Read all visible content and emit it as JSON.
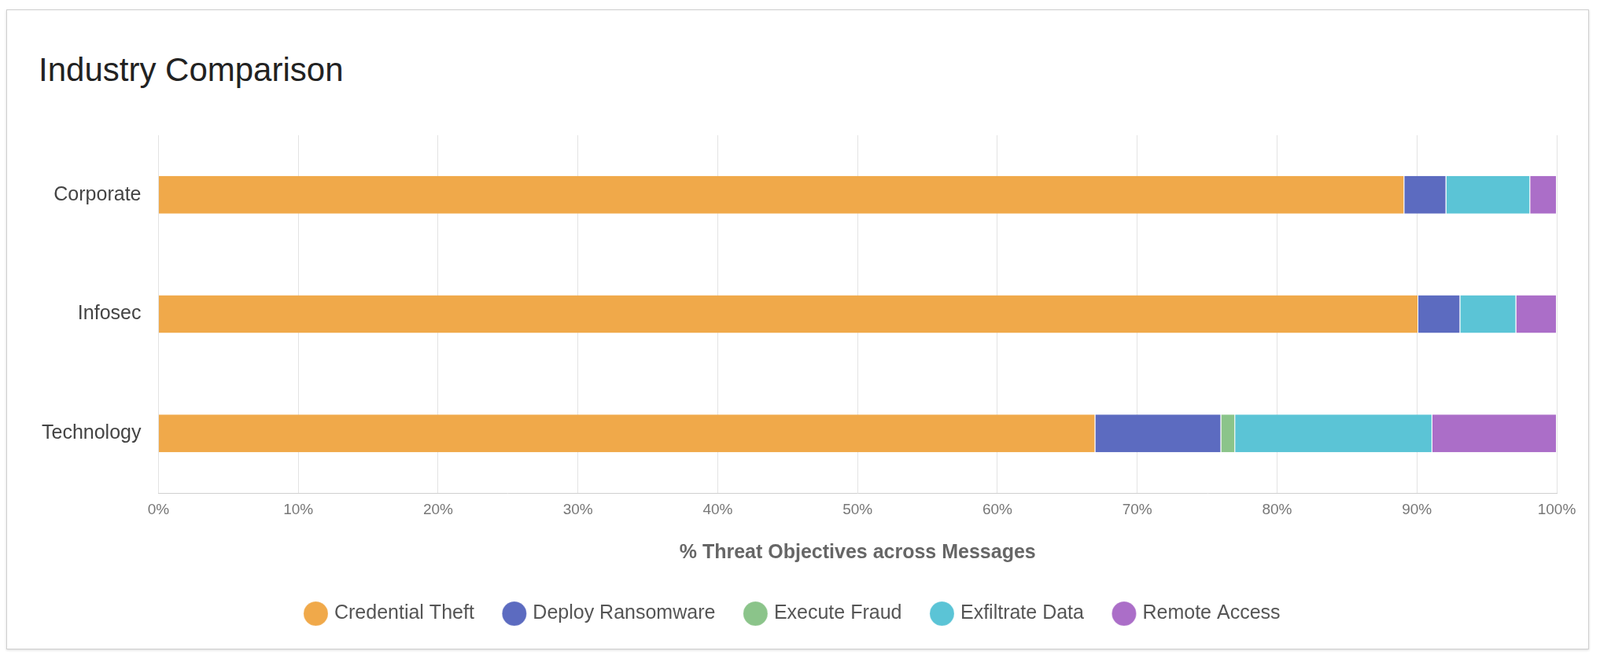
{
  "chart_data": {
    "type": "bar",
    "title": "Industry Comparison",
    "x_label": "% Threat Objectives across Messages",
    "orientation": "horizontal",
    "stacked": true,
    "grid": true,
    "legend": "bottom",
    "categories": [
      "Corporate",
      "Infosec",
      "Technology"
    ],
    "series": [
      {
        "name": "Credential Theft",
        "color": "#f0a94a",
        "values": [
          89.1,
          90.1,
          67.0
        ]
      },
      {
        "name": "Deploy Ransomware",
        "color": "#5c6bc0",
        "values": [
          3.0,
          3.0,
          9.0
        ]
      },
      {
        "name": "Execute Fraud",
        "color": "#8bc48a",
        "values": [
          0,
          0,
          1.0
        ]
      },
      {
        "name": "Exfiltrate Data",
        "color": "#5bc4d6",
        "values": [
          6.0,
          4.0,
          14.1
        ]
      },
      {
        "name": "Remote Access",
        "color": "#ab6ec8",
        "values": [
          1.9,
          2.9,
          8.9
        ]
      }
    ],
    "xlim": [
      0,
      100
    ],
    "xticks": [
      {
        "value": 0,
        "label": "0%"
      },
      {
        "value": 10,
        "label": "10%"
      },
      {
        "value": 20,
        "label": "20%"
      },
      {
        "value": 30,
        "label": "30%"
      },
      {
        "value": 40,
        "label": "40%"
      },
      {
        "value": 50,
        "label": "50%"
      },
      {
        "value": 60,
        "label": "60%"
      },
      {
        "value": 70,
        "label": "70%"
      },
      {
        "value": 80,
        "label": "80%"
      },
      {
        "value": 90,
        "label": "90%"
      },
      {
        "value": 100,
        "label": "100%"
      }
    ]
  }
}
